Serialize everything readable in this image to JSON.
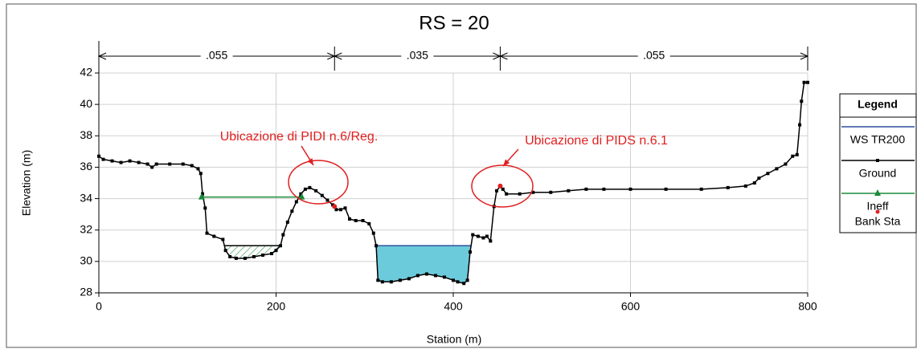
{
  "chart_data": {
    "type": "cross-section",
    "title": "RS = 20",
    "x_label": "Station (m)",
    "y_label": "Elevation (m)",
    "xlim": [
      0,
      800
    ],
    "ylim": [
      28,
      42
    ],
    "xticks": [
      0,
      200,
      400,
      600,
      800
    ],
    "yticks": [
      28,
      30,
      32,
      34,
      36,
      38,
      40,
      42
    ],
    "grid": true,
    "legend_title": "Legend",
    "manning": {
      "breaks": [
        0,
        266,
        453,
        800
      ],
      "labels": [
        ".055",
        ".035",
        ".055"
      ]
    },
    "series": [
      {
        "name": "WS TR200",
        "color": "#2f4f9f",
        "fill_color": "#6ccbdb",
        "values": [
          31.0
        ]
      },
      {
        "name": "Ground",
        "color": "#000000",
        "x": [
          0,
          5,
          15,
          25,
          35,
          45,
          55,
          60,
          65,
          80,
          95,
          105,
          112,
          115,
          117,
          120,
          122,
          130,
          140,
          143,
          148,
          155,
          165,
          175,
          185,
          195,
          200,
          205,
          208,
          213,
          218,
          223,
          228,
          233,
          238,
          245,
          252,
          258,
          264,
          268,
          273,
          278,
          283,
          290,
          298,
          305,
          310,
          313,
          315,
          320,
          330,
          340,
          350,
          360,
          370,
          380,
          390,
          400,
          405,
          412,
          416,
          419,
          422,
          428,
          434,
          438,
          442,
          446,
          449,
          453,
          456,
          460,
          475,
          490,
          510,
          530,
          550,
          570,
          600,
          640,
          680,
          710,
          730,
          740,
          745,
          755,
          765,
          775,
          783,
          788,
          791,
          793,
          796,
          800
        ],
        "values": [
          36.7,
          36.5,
          36.4,
          36.3,
          36.4,
          36.3,
          36.2,
          36.0,
          36.2,
          36.2,
          36.2,
          36.1,
          35.9,
          35.6,
          34.3,
          33.4,
          31.8,
          31.6,
          31.4,
          30.7,
          30.3,
          30.2,
          30.2,
          30.3,
          30.4,
          30.5,
          30.7,
          31.0,
          31.7,
          32.5,
          33.2,
          33.8,
          34.3,
          34.6,
          34.7,
          34.5,
          34.2,
          33.9,
          33.6,
          33.3,
          33.3,
          33.4,
          32.7,
          32.6,
          32.6,
          32.4,
          31.8,
          31.0,
          28.8,
          28.7,
          28.7,
          28.8,
          28.9,
          29.1,
          29.2,
          29.1,
          29.0,
          28.8,
          28.7,
          28.6,
          28.8,
          30.6,
          31.7,
          31.6,
          31.5,
          31.6,
          31.3,
          33.5,
          34.5,
          34.8,
          34.6,
          34.3,
          34.3,
          34.4,
          34.4,
          34.5,
          34.6,
          34.6,
          34.6,
          34.6,
          34.6,
          34.7,
          34.8,
          35.0,
          35.3,
          35.6,
          35.9,
          36.2,
          36.7,
          36.8,
          38.7,
          40.2,
          41.4,
          41.4
        ]
      },
      {
        "name": "Ineff",
        "color": "#1a8a3a",
        "x": [
          116,
          229
        ],
        "values": [
          34.1,
          34.1
        ]
      },
      {
        "name": "Bank Sta",
        "color": "#e02020",
        "x": [
          266,
          453
        ],
        "values": [
          33.5,
          34.8
        ]
      }
    ],
    "annotations": [
      {
        "text": "Ubicazione di PIDI n.6/Reg.",
        "color": "#e02020"
      },
      {
        "text": "Ubicazione di PIDS n.6.1",
        "color": "#e02020"
      }
    ]
  }
}
